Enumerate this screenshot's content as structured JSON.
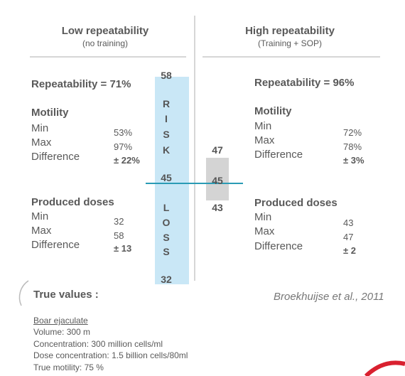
{
  "left": {
    "title": "Low repeatability",
    "subtitle": "(no training)",
    "repeatability": "Repeatability = 71%",
    "motility": {
      "heading": "Motility",
      "labels": [
        "Min",
        "Max",
        "Difference"
      ],
      "values": [
        "53%",
        "97%",
        "± 22%"
      ]
    },
    "doses": {
      "heading": "Produced doses",
      "labels": [
        "Min",
        "Max",
        "Difference"
      ],
      "values": [
        "32",
        "58",
        "± 13"
      ]
    }
  },
  "right": {
    "title": "High repeatability",
    "subtitle": "(Training + SOP)",
    "repeatability": "Repeatability = 96%",
    "motility": {
      "heading": "Motility",
      "labels": [
        "Min",
        "Max",
        "Difference"
      ],
      "values": [
        "72%",
        "78%",
        "± 3%"
      ]
    },
    "doses": {
      "heading": "Produced doses",
      "labels": [
        "Min",
        "Max",
        "Difference"
      ],
      "values": [
        "43",
        "47",
        "± 2"
      ]
    }
  },
  "risk_bar": {
    "top": "58",
    "middle": "45",
    "bottom": "32",
    "risk": [
      "R",
      "I",
      "S",
      "K"
    ],
    "loss": [
      "L",
      "O",
      "S",
      "S"
    ]
  },
  "gray_bar": {
    "top": "47",
    "middle": "45",
    "bottom": "43"
  },
  "true_values": {
    "heading": "True values :",
    "subheading": "Boar ejaculate",
    "lines": [
      "Volume: 300 m",
      "Concentration: 300 million cells/ml",
      "Dose concentration: 1.5 billion cells/80ml",
      "True motility: 75 %"
    ]
  },
  "citation": "Broekhuijse et al., 2011"
}
